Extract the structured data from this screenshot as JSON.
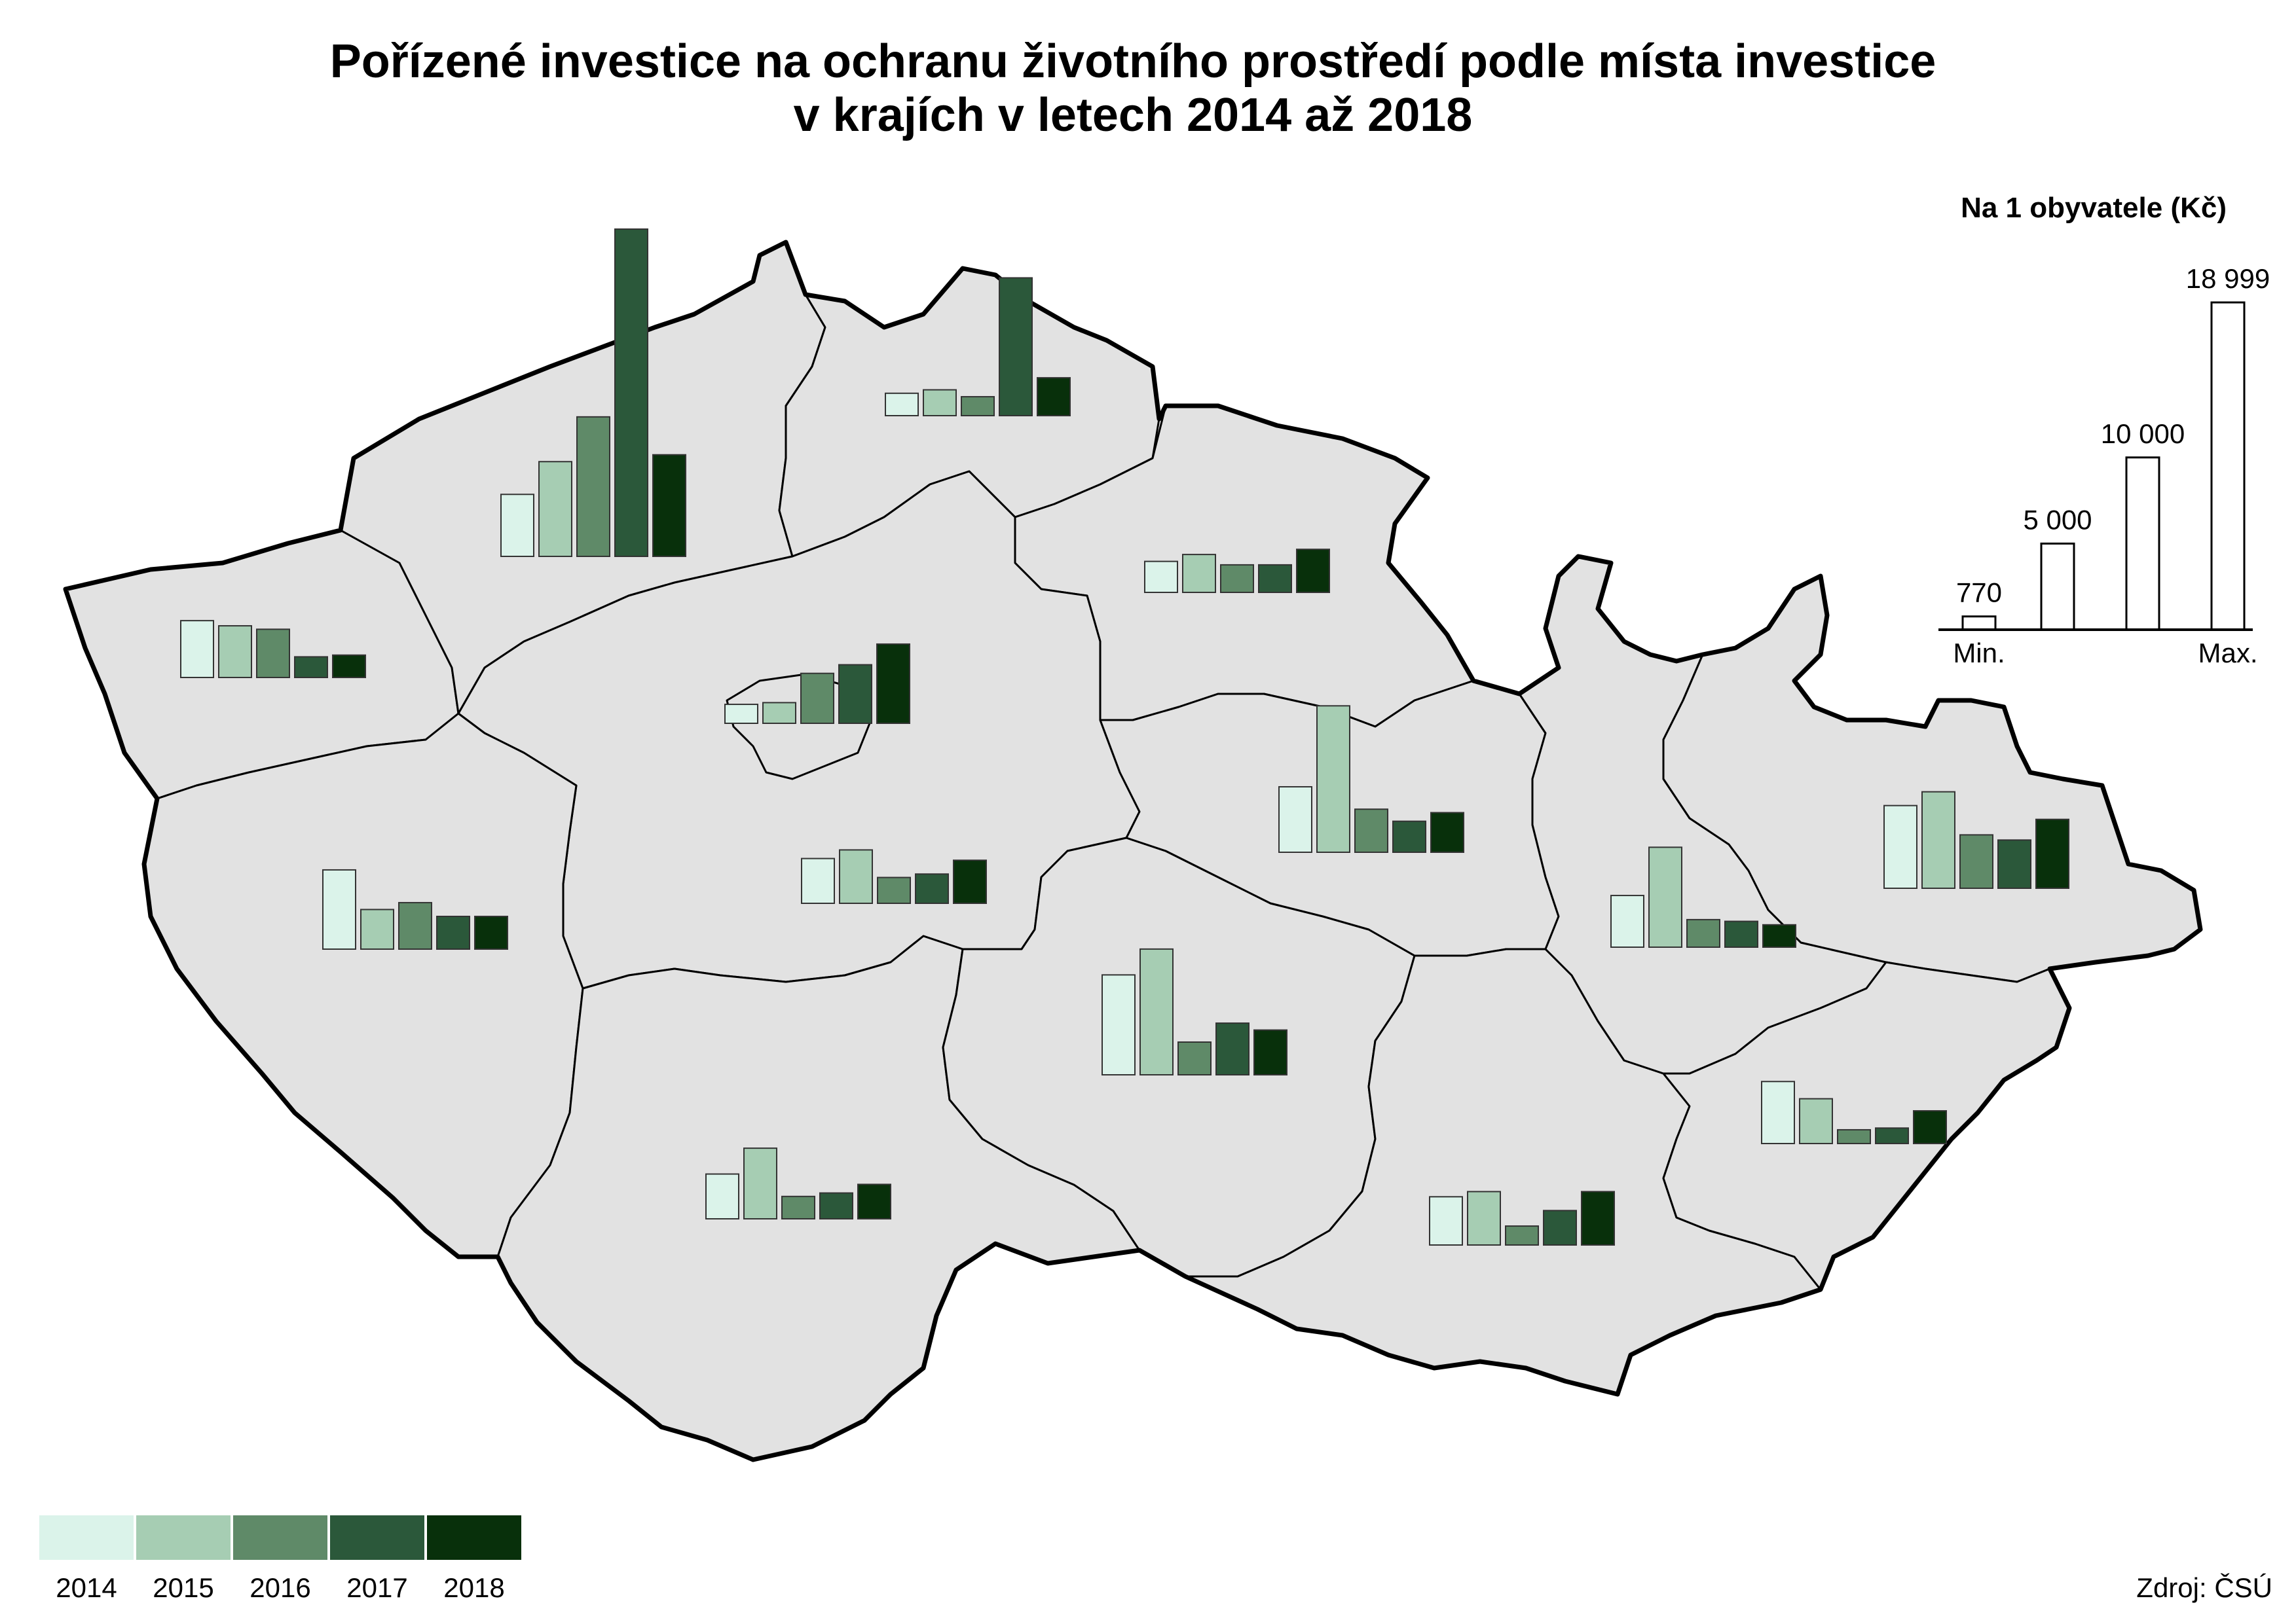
{
  "title": {
    "line1": "Pořízené investice na ochranu životního prostředí podle místa investice",
    "line2": "v krajích v letech 2014 až 2018"
  },
  "scale": {
    "title": "Na 1 obyvatele (Kč)",
    "values": [
      770,
      5000,
      10000,
      18999
    ],
    "value_labels": [
      "770",
      "5 000",
      "10 000",
      "18 999"
    ],
    "min_label": "Min.",
    "max_label": "Max."
  },
  "legend": {
    "years": [
      "2014",
      "2015",
      "2016",
      "2017",
      "2018"
    ],
    "colors": [
      "#dbf3ea",
      "#a6cdb3",
      "#5f8a68",
      "#2b583a",
      "#08300b"
    ]
  },
  "source": "Zdroj: ČSÚ",
  "chart_data": {
    "type": "bar",
    "categories": [
      "2014",
      "2015",
      "2016",
      "2017",
      "2018"
    ],
    "unit": "Kč na 1 obyvatele",
    "series": [
      {
        "values": [
          3600,
          5500,
          8100,
          18999,
          5900
        ]
      },
      {
        "values": [
          1300,
          1500,
          1100,
          8000,
          2200
        ]
      },
      {
        "values": [
          1800,
          2200,
          1600,
          1600,
          2500
        ]
      },
      {
        "values": [
          3300,
          3000,
          2800,
          1200,
          1300
        ]
      },
      {
        "values": [
          1100,
          1200,
          2900,
          3400,
          4600
        ]
      },
      {
        "values": [
          2600,
          3100,
          1500,
          1700,
          2500
        ]
      },
      {
        "values": [
          3800,
          8500,
          2500,
          1800,
          2300
        ]
      },
      {
        "values": [
          4600,
          2300,
          2700,
          1900,
          1900
        ]
      },
      {
        "values": [
          5800,
          7300,
          1900,
          3000,
          2600
        ]
      },
      {
        "values": [
          2600,
          4100,
          1300,
          1500,
          2000
        ]
      },
      {
        "values": [
          2800,
          3100,
          1100,
          2000,
          3100
        ]
      },
      {
        "values": [
          3000,
          5800,
          1600,
          1500,
          1300
        ]
      },
      {
        "values": [
          4800,
          5600,
          3100,
          2800,
          4000
        ]
      },
      {
        "values": [
          3600,
          2600,
          800,
          900,
          1900
        ]
      }
    ]
  }
}
